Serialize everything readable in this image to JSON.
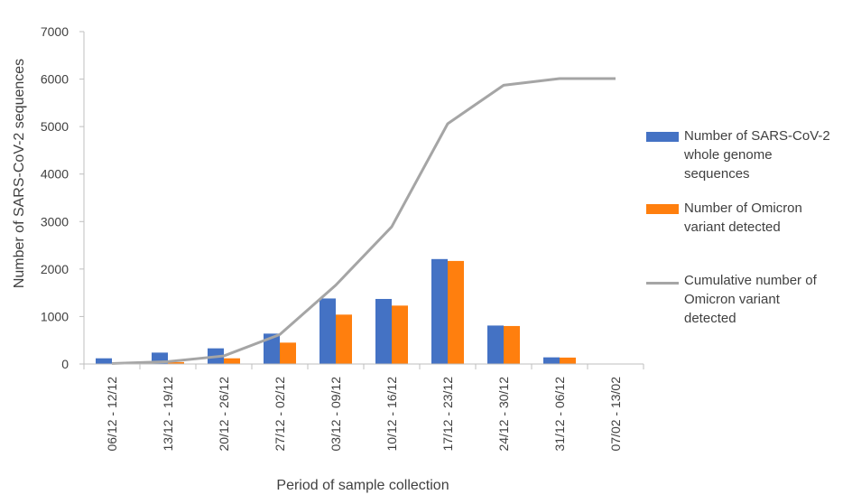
{
  "chart_data": {
    "type": "bar",
    "categories": [
      "06/12 - 12/12",
      "13/12 - 19/12",
      "20/12 - 26/12",
      "27/12 - 02/12",
      "03/12 - 09/12",
      "10/12 - 16/12",
      "17/12 - 23/12",
      "24/12 - 30/12",
      "31/12 - 06/12",
      "07/02 - 13/02"
    ],
    "series": [
      {
        "name": "Number of SARS-CoV-2 whole genome sequences",
        "kind": "bar",
        "color": "#4472c4",
        "values": [
          120,
          240,
          330,
          640,
          1380,
          1370,
          2210,
          810,
          140,
          0
        ]
      },
      {
        "name": "Number of Omicron variant detected",
        "kind": "bar",
        "color": "#ff7f0e",
        "values": [
          10,
          40,
          120,
          450,
          1040,
          1230,
          2170,
          800,
          135,
          0
        ]
      },
      {
        "name": "Cumulative number of Omicron  variant detected",
        "kind": "line",
        "color": "#a5a5a5",
        "values": [
          10,
          50,
          170,
          620,
          1660,
          2890,
          5060,
          5870,
          6010,
          6010
        ]
      }
    ],
    "xlabel": "Period of sample collection",
    "ylabel": "Number of SARS-CoV-2 sequences",
    "ylim": [
      0,
      7000
    ],
    "yticks": [
      0,
      1000,
      2000,
      3000,
      4000,
      5000,
      6000,
      7000
    ],
    "grid": false,
    "legend_position": "right"
  },
  "legend": {
    "item1": "Number of SARS-CoV-2\nwhole genome\nsequences",
    "item2": "Number of Omicron\nvariant detected",
    "item3": "Cumulative number of\nOmicron  variant\ndetected"
  }
}
